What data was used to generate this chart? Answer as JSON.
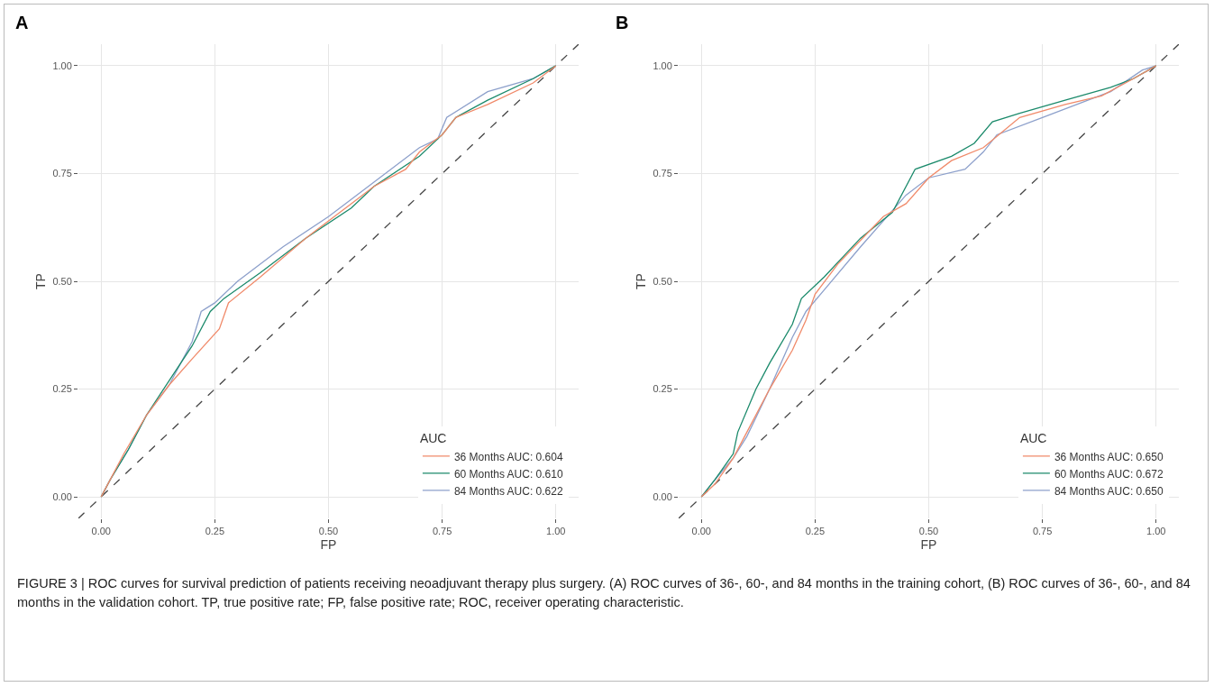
{
  "chart_data": [
    {
      "type": "line",
      "title": "A",
      "xlabel": "FP",
      "ylabel": "TP",
      "legend_title": "AUC",
      "legend": "bottom right",
      "grid": true,
      "marker": "none",
      "xlim": [
        -0.05,
        1.05
      ],
      "ylim": [
        -0.05,
        1.05
      ],
      "xticks": [
        {
          "value": 0,
          "label": "0.00"
        },
        {
          "value": 0.25,
          "label": "0.25"
        },
        {
          "value": 0.5,
          "label": "0.50"
        },
        {
          "value": 0.75,
          "label": "0.75"
        },
        {
          "value": 1,
          "label": "1.00"
        }
      ],
      "yticks": [
        {
          "value": 0,
          "label": "0.00"
        },
        {
          "value": 0.25,
          "label": "0.25"
        },
        {
          "value": 0.5,
          "label": "0.50"
        },
        {
          "value": 0.75,
          "label": "0.75"
        },
        {
          "value": 1,
          "label": "1.00"
        }
      ],
      "series": [
        {
          "name": "36 Months AUC: 0.604",
          "color": "#f08a6a",
          "line_style": "solid",
          "x": [
            0,
            0.05,
            0.1,
            0.15,
            0.2,
            0.26,
            0.28,
            0.35,
            0.45,
            0.55,
            0.6,
            0.67,
            0.7,
            0.75,
            0.78,
            0.85,
            0.95,
            1
          ],
          "values": [
            0,
            0.1,
            0.19,
            0.26,
            0.32,
            0.39,
            0.45,
            0.51,
            0.6,
            0.68,
            0.72,
            0.76,
            0.8,
            0.84,
            0.88,
            0.91,
            0.96,
            1
          ]
        },
        {
          "name": "60 Months AUC: 0.610",
          "color": "#1b8a6b",
          "line_style": "solid",
          "x": [
            0,
            0.02,
            0.06,
            0.1,
            0.15,
            0.2,
            0.24,
            0.27,
            0.35,
            0.45,
            0.55,
            0.6,
            0.7,
            0.75,
            0.78,
            0.85,
            0.95,
            1
          ],
          "values": [
            0,
            0.04,
            0.11,
            0.19,
            0.27,
            0.35,
            0.43,
            0.46,
            0.52,
            0.6,
            0.67,
            0.72,
            0.79,
            0.84,
            0.88,
            0.92,
            0.97,
            1
          ]
        },
        {
          "name": "84 Months AUC: 0.622",
          "color": "#8da0cb",
          "line_style": "solid",
          "x": [
            0,
            0.02,
            0.06,
            0.1,
            0.15,
            0.2,
            0.22,
            0.25,
            0.3,
            0.4,
            0.5,
            0.6,
            0.7,
            0.74,
            0.76,
            0.85,
            0.95,
            1
          ],
          "values": [
            0,
            0.04,
            0.11,
            0.19,
            0.26,
            0.36,
            0.43,
            0.45,
            0.5,
            0.58,
            0.65,
            0.73,
            0.81,
            0.83,
            0.88,
            0.94,
            0.97,
            1
          ]
        },
        {
          "color": "#444444",
          "line_style": "dashed",
          "x": [
            -0.05,
            1.05
          ],
          "values": [
            -0.05,
            1.05
          ]
        }
      ]
    },
    {
      "type": "line",
      "title": "B",
      "xlabel": "FP",
      "ylabel": "TP",
      "legend_title": "AUC",
      "legend": "bottom right",
      "grid": true,
      "marker": "none",
      "xlim": [
        -0.05,
        1.05
      ],
      "ylim": [
        -0.05,
        1.05
      ],
      "xticks": [
        {
          "value": 0,
          "label": "0.00"
        },
        {
          "value": 0.25,
          "label": "0.25"
        },
        {
          "value": 0.5,
          "label": "0.50"
        },
        {
          "value": 0.75,
          "label": "0.75"
        },
        {
          "value": 1,
          "label": "1.00"
        }
      ],
      "yticks": [
        {
          "value": 0,
          "label": "0.00"
        },
        {
          "value": 0.25,
          "label": "0.25"
        },
        {
          "value": 0.5,
          "label": "0.50"
        },
        {
          "value": 0.75,
          "label": "0.75"
        },
        {
          "value": 1,
          "label": "1.00"
        }
      ],
      "series": [
        {
          "name": "36 Months AUC: 0.650",
          "color": "#f08a6a",
          "line_style": "solid",
          "x": [
            0,
            0.03,
            0.07,
            0.1,
            0.15,
            0.2,
            0.23,
            0.25,
            0.3,
            0.4,
            0.45,
            0.5,
            0.55,
            0.62,
            0.7,
            0.8,
            0.88,
            0.95,
            1
          ],
          "values": [
            0,
            0.03,
            0.09,
            0.15,
            0.25,
            0.34,
            0.41,
            0.47,
            0.54,
            0.65,
            0.68,
            0.74,
            0.78,
            0.81,
            0.88,
            0.91,
            0.93,
            0.97,
            1
          ]
        },
        {
          "name": "60 Months AUC: 0.672",
          "color": "#1b8a6b",
          "line_style": "solid",
          "x": [
            0,
            0.03,
            0.07,
            0.08,
            0.12,
            0.15,
            0.2,
            0.22,
            0.27,
            0.35,
            0.42,
            0.47,
            0.55,
            0.6,
            0.64,
            0.7,
            0.8,
            0.9,
            0.95,
            1
          ],
          "values": [
            0,
            0.04,
            0.1,
            0.15,
            0.25,
            0.31,
            0.4,
            0.46,
            0.51,
            0.6,
            0.66,
            0.76,
            0.79,
            0.82,
            0.87,
            0.89,
            0.92,
            0.95,
            0.97,
            1
          ]
        },
        {
          "name": "84 Months AUC: 0.650",
          "color": "#8da0cb",
          "line_style": "solid",
          "x": [
            0,
            0.03,
            0.07,
            0.1,
            0.15,
            0.2,
            0.23,
            0.27,
            0.35,
            0.45,
            0.5,
            0.58,
            0.62,
            0.65,
            0.75,
            0.85,
            0.9,
            0.97,
            1
          ],
          "values": [
            0,
            0.04,
            0.09,
            0.14,
            0.25,
            0.37,
            0.43,
            0.48,
            0.58,
            0.7,
            0.74,
            0.76,
            0.8,
            0.84,
            0.88,
            0.92,
            0.94,
            0.99,
            1
          ]
        },
        {
          "color": "#444444",
          "line_style": "dashed",
          "x": [
            -0.05,
            1.05
          ],
          "values": [
            -0.05,
            1.05
          ]
        }
      ],
      "annotations": [
        "FIGURE 3 | ROC curves for survival prediction of patients receiving neoadjuvant therapy plus surgery. (A) ROC curves of 36-, 60-, and 84 months in the training cohort, (B) ROC curves of 36-, 60-, and 84 months in the validation cohort. TP, true positive rate; FP, false positive rate; ROC, receiver operating characteristic."
      ]
    }
  ]
}
